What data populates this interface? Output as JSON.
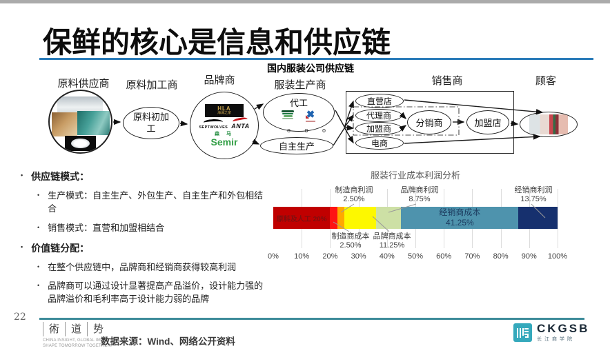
{
  "slide": {
    "page_number": "22",
    "title": "保鲜的核心是信息和供应链",
    "footer": {
      "data_source": "数据来源：Wind、网络公开资料",
      "brand_chars": [
        "術",
        "道",
        "势"
      ],
      "brand_tagline_line1": "CHINA INSIGHT, GLOBAL IMPACT,",
      "brand_tagline_line2": "SHAPE TOMORROW TOGETHER.",
      "school_acronym": "CKGSB",
      "school_name": "长江商学院"
    }
  },
  "diagram": {
    "title": "国内服装公司供应链",
    "stages": [
      "原料供应商",
      "原料加工商",
      "品牌商",
      "服装生产商",
      "销售商",
      "顾客"
    ],
    "nodes": {
      "raw_processing": "原料初加工",
      "oem": "代工",
      "self_production": "自主生产",
      "direct_store": "直营店",
      "agent": "代理商",
      "franchisee": "加盟商",
      "ecommerce": "电商",
      "distributor": "分销商",
      "franchise_store": "加盟店",
      "ellipsis_dots": "o o o"
    },
    "brands": {
      "hla": "HLA",
      "hla_sub": "海澜之家",
      "septwolves": "SEPTWOLVES",
      "anta": "ANTA",
      "semir_cn": "森 马",
      "semir_en": "Semir"
    }
  },
  "bullets": [
    {
      "label": "供应链模式：",
      "children": [
        "生产模式：自主生产、外包生产、自主生产和外包相结合",
        "销售模式：直营和加盟相结合"
      ]
    },
    {
      "label": "价值链分配：",
      "children": [
        "在整个供应链中，品牌商和经销商获得较高利润",
        "品牌商可以通过设计显著提高产品溢价，设计能力强的品牌溢价和毛利率高于设计能力弱的品牌"
      ]
    }
  ],
  "chart_data": {
    "type": "bar",
    "orientation": "horizontal_stacked",
    "title": "服装行业成本利润分析",
    "xlim": [
      0,
      100
    ],
    "grid": true,
    "x_ticks": [
      "0%",
      "10%",
      "20%",
      "30%",
      "40%",
      "50%",
      "60%",
      "70%",
      "80%",
      "90%",
      "100%"
    ],
    "segments": [
      {
        "name": "原料及人工",
        "display": "20%",
        "value": 20,
        "color": "#c00000",
        "label_pos": "inside",
        "inside_oneline": true,
        "text_color": "#7e0f0f"
      },
      {
        "name": "制造商成本",
        "display": "2.50%",
        "value": 2.5,
        "color": "#fe1414",
        "label_pos": "below"
      },
      {
        "name": "制造商利润",
        "display": "2.50%",
        "value": 2.5,
        "color": "#ffa800",
        "label_pos": "above"
      },
      {
        "name": "品牌商成本",
        "display": "11.25%",
        "value": 11.25,
        "color": "#fdf800",
        "label_pos": "below"
      },
      {
        "name": "品牌商利润",
        "display": "8.75%",
        "value": 8.75,
        "color": "#cde0a5",
        "label_pos": "above"
      },
      {
        "name": "经销商成本",
        "display": "41.25%",
        "value": 41.25,
        "color": "#4e93ad",
        "label_pos": "inside",
        "inside_oneline": false,
        "text_color": "#1b3a5e"
      },
      {
        "name": "经销商利润",
        "display": "13.75%",
        "value": 13.75,
        "color": "#16306e",
        "label_pos": "above"
      }
    ]
  }
}
